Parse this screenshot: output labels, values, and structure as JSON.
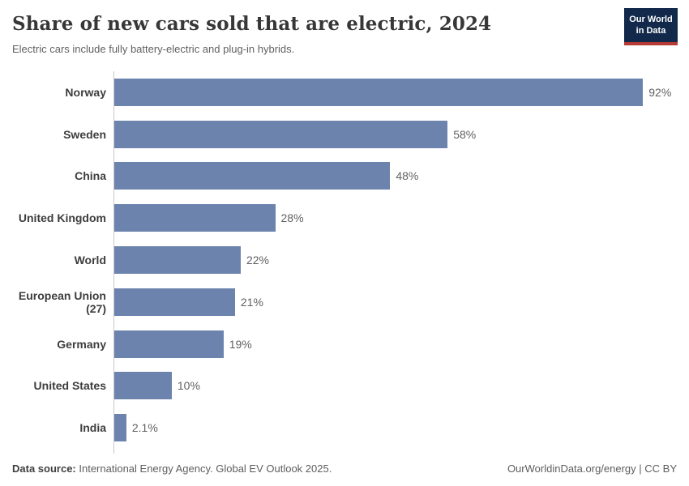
{
  "header": {
    "title": "Share of new cars sold that are electric, 2024",
    "subtitle": "Electric cars include fully battery-electric and plug-in hybrids.",
    "logo": {
      "line1": "Our World",
      "line2": "in Data"
    }
  },
  "chart_data": {
    "type": "bar",
    "orientation": "horizontal",
    "title": "Share of new cars sold that are electric, 2024",
    "subtitle": "Electric cars include fully battery-electric and plug-in hybrids.",
    "categories": [
      "Norway",
      "Sweden",
      "China",
      "United Kingdom",
      "World",
      "European Union (27)",
      "Germany",
      "United States",
      "India"
    ],
    "values": [
      92,
      58,
      48,
      28,
      22,
      21,
      19,
      10,
      2.1
    ],
    "value_labels": [
      "92%",
      "58%",
      "48%",
      "28%",
      "22%",
      "21%",
      "19%",
      "10%",
      "2.1%"
    ],
    "unit": "%",
    "xlabel": "",
    "ylabel": "",
    "xlim": [
      0,
      100
    ],
    "grid": false,
    "legend": "none"
  },
  "colors": {
    "bar": "#6c84ad",
    "axis": "#c8c8c8",
    "logo_bg": "#12294b",
    "logo_red": "#b63b36"
  },
  "footer": {
    "source_label": "Data source:",
    "source_text": " International Energy Agency. Global EV Outlook 2025.",
    "credit": "OurWorldinData.org/energy | CC BY"
  }
}
